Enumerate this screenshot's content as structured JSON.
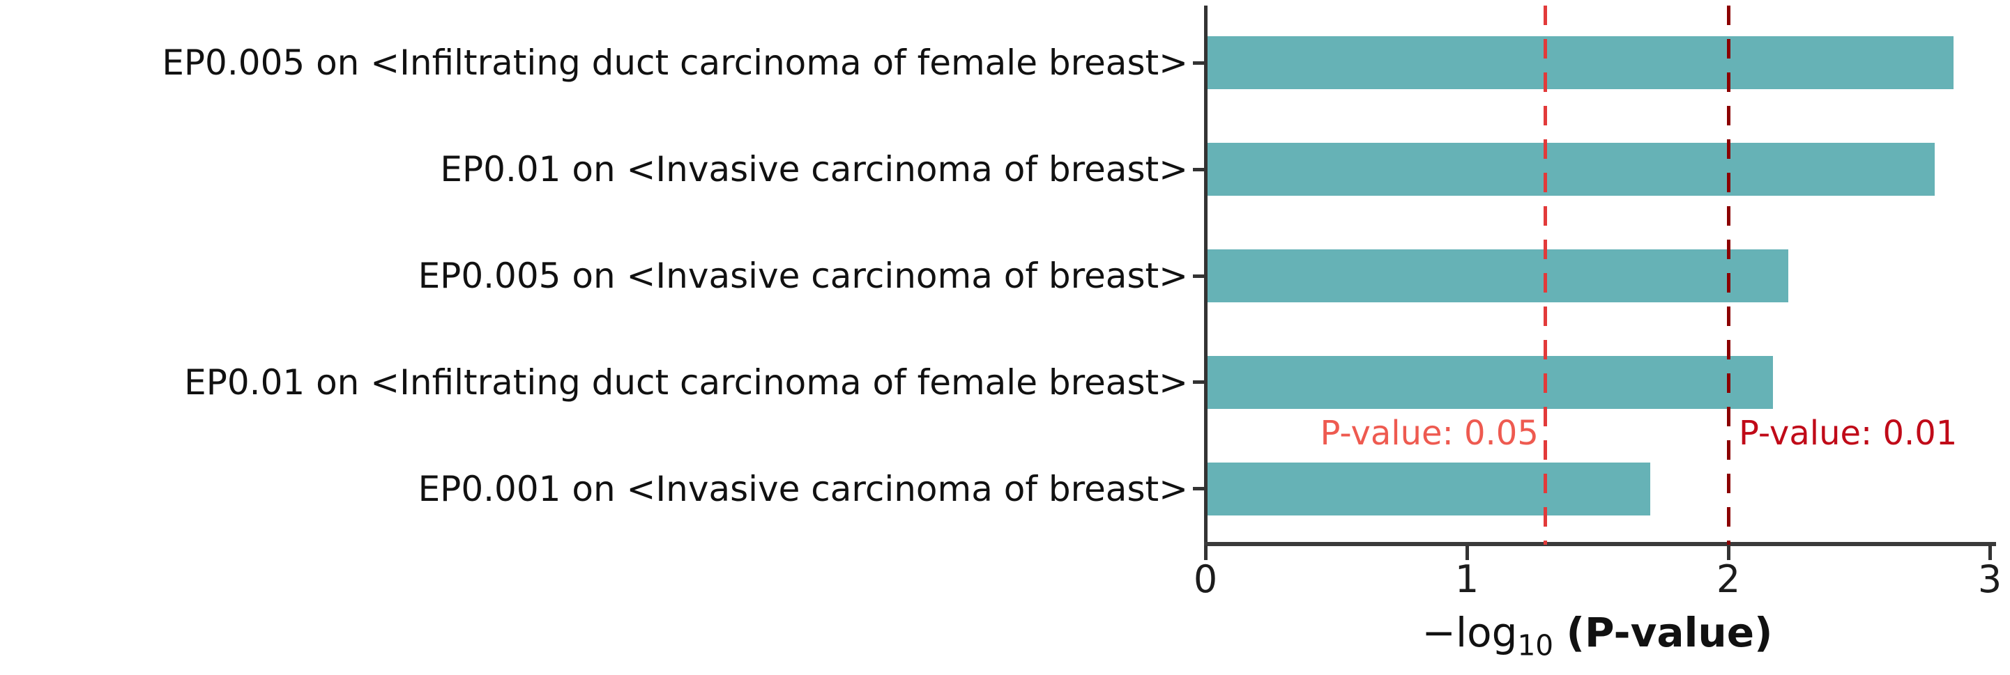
{
  "chart_data": {
    "type": "bar",
    "orientation": "horizontal",
    "title": "",
    "categories": [
      "EP0.005 on <Infiltrating duct carcinoma of female breast>",
      "EP0.01 on <Invasive carcinoma of breast>",
      "EP0.005 on <Invasive carcinoma of breast>",
      "EP0.01 on <Infiltrating duct carcinoma of female breast>",
      "EP0.001 on <Invasive carcinoma of breast>"
    ],
    "values": [
      2.86,
      2.79,
      2.23,
      2.17,
      1.7
    ],
    "xlabel_main": "−log",
    "xlabel_sub": "10",
    "xlabel_bold": "(P-value)",
    "ylabel": "",
    "xlim": [
      0,
      3
    ],
    "x_ticks": [
      "0",
      "1",
      "2",
      "3"
    ],
    "grid": false,
    "legend": "none",
    "bar_color": "#66b2b6",
    "axis_color": "#333333",
    "reference_lines": [
      {
        "value": 1.301,
        "label": "P-value: 0.05",
        "line_color": "#e23a3a",
        "text_color": "#ee5a50",
        "label_side": "left"
      },
      {
        "value": 2.0,
        "label": "P-value: 0.01",
        "line_color": "#8b0000",
        "text_color": "#c00a18",
        "label_side": "right"
      }
    ]
  }
}
